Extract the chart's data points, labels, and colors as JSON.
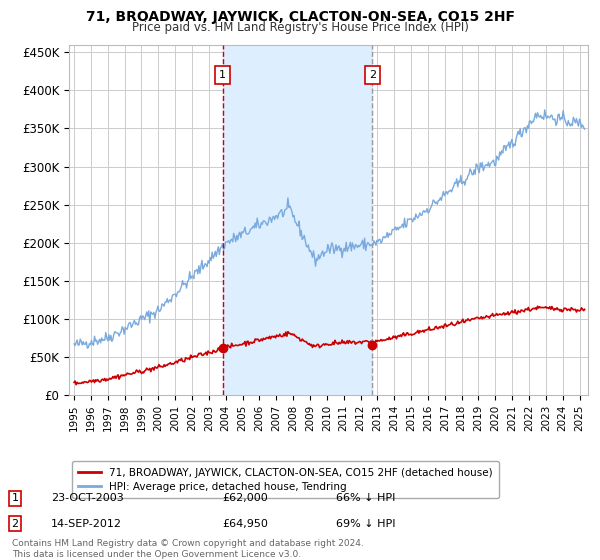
{
  "title": "71, BROADWAY, JAYWICK, CLACTON-ON-SEA, CO15 2HF",
  "subtitle": "Price paid vs. HM Land Registry's House Price Index (HPI)",
  "hpi_color": "#7aaadd",
  "price_color": "#cc0000",
  "marker_color": "#cc0000",
  "vline1_color": "#cc0000",
  "vline2_color": "#999999",
  "shade_color": "#ddeeff",
  "background_color": "#ffffff",
  "grid_color": "#cccccc",
  "ylim": [
    0,
    460000
  ],
  "yticks": [
    0,
    50000,
    100000,
    150000,
    200000,
    250000,
    300000,
    350000,
    400000,
    450000
  ],
  "ytick_labels": [
    "£0",
    "£50K",
    "£100K",
    "£150K",
    "£200K",
    "£250K",
    "£300K",
    "£350K",
    "£400K",
    "£450K"
  ],
  "sale1_year": 2003.81,
  "sale1_price": 62000,
  "sale1_label": "1",
  "sale2_year": 2012.71,
  "sale2_price": 64950,
  "sale2_label": "2",
  "legend_line1": "71, BROADWAY, JAYWICK, CLACTON-ON-SEA, CO15 2HF (detached house)",
  "legend_line2": "HPI: Average price, detached house, Tendring",
  "footnote": "Contains HM Land Registry data © Crown copyright and database right 2024.\nThis data is licensed under the Open Government Licence v3.0.",
  "table_row1": [
    "1",
    "23-OCT-2003",
    "£62,000",
    "66% ↓ HPI"
  ],
  "table_row2": [
    "2",
    "14-SEP-2012",
    "£64,950",
    "69% ↓ HPI"
  ],
  "xlim_left": 1994.7,
  "xlim_right": 2025.5
}
